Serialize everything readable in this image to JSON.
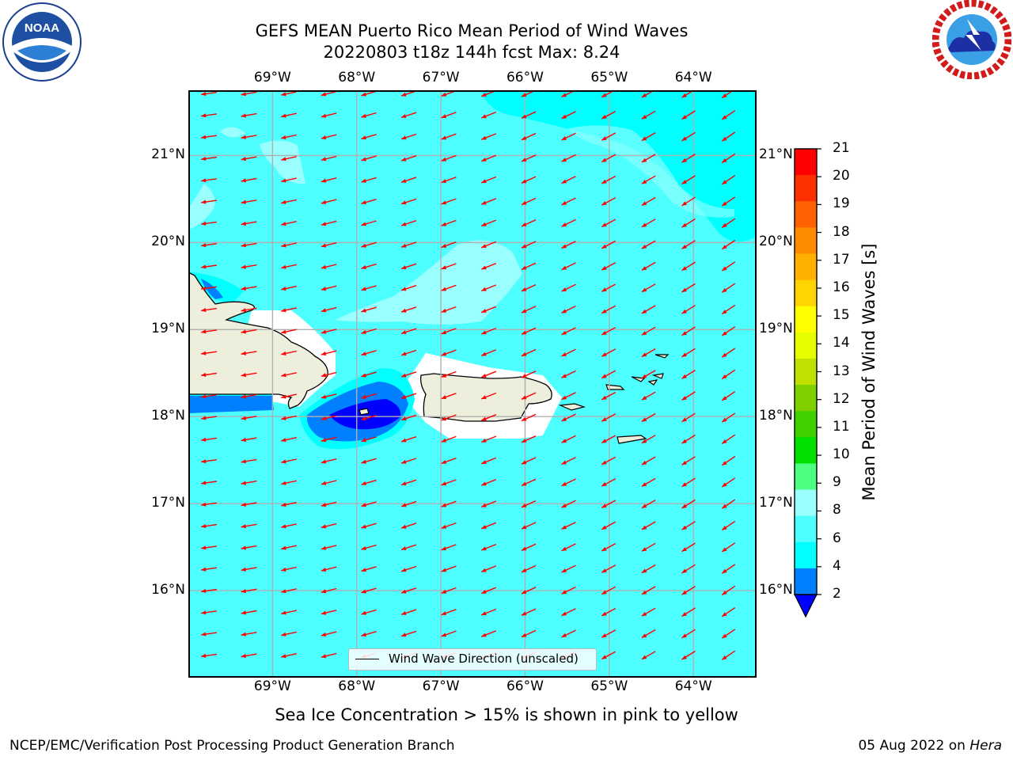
{
  "header": {
    "title_line1": "GEFS MEAN Puerto Rico Mean Period of Wind Waves",
    "title_line2": "20220803 t18z 144h fcst   Max: 8.24"
  },
  "logos": {
    "left": "noaa-logo",
    "right": "nws-logo"
  },
  "map": {
    "lon_labels": [
      "69°W",
      "68°W",
      "67°W",
      "66°W",
      "65°W",
      "64°W"
    ],
    "lat_labels": [
      "21°N",
      "20°N",
      "19°N",
      "18°N",
      "17°N",
      "16°N"
    ],
    "lon_values": [
      -69,
      -68,
      -67,
      -66,
      -65,
      -64
    ],
    "lat_values": [
      21,
      20,
      19,
      18,
      17,
      16
    ],
    "lon_range": [
      -70,
      -63.25
    ],
    "lat_range": [
      15,
      21.75
    ],
    "grid": true,
    "colors": {
      "ocean_main": "#4dffff",
      "ocean_light": "#99ffff",
      "ocean_cyan": "#00ffff",
      "low_blue": "#0080ff",
      "very_low": "#0000ff",
      "land": "#eeeedd",
      "arrows": "#ff0000"
    }
  },
  "legend": {
    "label": "Wind Wave Direction (unscaled)"
  },
  "colorbar": {
    "title": "Mean Period of Wind Waves [s]",
    "ticks": [
      "2",
      "4",
      "6",
      "8",
      "9",
      "10",
      "11",
      "12",
      "13",
      "14",
      "15",
      "16",
      "17",
      "18",
      "19",
      "20",
      "21"
    ],
    "colors": [
      "#0080ff",
      "#00ffff",
      "#4dffff",
      "#99ffff",
      "#4dff80",
      "#00e000",
      "#40d000",
      "#80d000",
      "#c0e000",
      "#e6ff00",
      "#ffff00",
      "#ffd400",
      "#ffb000",
      "#ff8c00",
      "#ff6000",
      "#ff3000",
      "#ff0000"
    ],
    "under_color": "#0000ff"
  },
  "footer": {
    "note": "Sea Ice Concentration > 15% is shown in pink to yellow",
    "credit_left": "NCEP/EMC/Verification Post Processing Product Generation Branch",
    "credit_right_date": "05 Aug 2022 on",
    "credit_right_host": "Hera"
  }
}
